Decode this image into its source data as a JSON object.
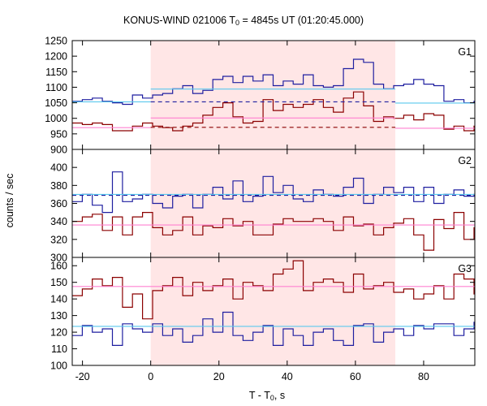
{
  "title": {
    "pre": "KONUS-WIND 021006 T",
    "sub": "0",
    "post": " = 4845s UT (01:20:45.000)"
  },
  "xlabel": {
    "pre": "T - T",
    "sub": "0",
    "post": ", s"
  },
  "ylabel": "counts / sec",
  "colors": {
    "accumulation_shade": "#ffe6e6",
    "blue_series": "#1f1fa0",
    "red_series": "#8b0000",
    "blue_background": "#5ac8ee",
    "red_background": "#ff80d0"
  },
  "chart_data": [
    {
      "type": "line",
      "panel_label": "G1",
      "xlim": [
        -23,
        95
      ],
      "ylim": [
        900,
        1250
      ],
      "x_ticks": [
        -20,
        0,
        20,
        40,
        60,
        80
      ],
      "y_ticks": [
        900,
        950,
        1000,
        1050,
        1100,
        1150,
        1200,
        1250
      ],
      "shaded_interval": [
        0,
        71.7
      ],
      "grid": false,
      "series": [
        {
          "style": "step",
          "color": "blue",
          "x_start": -23,
          "bin_width": 2.944,
          "values": [
            1055,
            1060,
            1065,
            1055,
            1050,
            1045,
            1075,
            1065,
            1075,
            1080,
            1095,
            1105,
            1080,
            1090,
            1125,
            1135,
            1115,
            1135,
            1120,
            1140,
            1105,
            1120,
            1110,
            1140,
            1105,
            1100,
            1105,
            1160,
            1190,
            1180,
            1110,
            1095,
            1105,
            1110,
            1125,
            1110,
            1105,
            1055,
            1060,
            1050,
            1055,
            1060,
            1050,
            1045,
            1075,
            1105,
            1055,
            1045,
            1060,
            1080,
            1045,
            1040,
            1055,
            1040,
            1045,
            1070
          ]
        },
        {
          "style": "step",
          "color": "red",
          "x_start": -23,
          "bin_width": 2.944,
          "values": [
            985,
            980,
            985,
            980,
            960,
            960,
            975,
            985,
            975,
            970,
            960,
            975,
            985,
            1010,
            1035,
            1050,
            1005,
            985,
            990,
            1060,
            1025,
            1045,
            1035,
            1045,
            1060,
            1035,
            1020,
            1065,
            1085,
            1040,
            990,
            1005,
            1000,
            1010,
            995,
            1015,
            1010,
            965,
            975,
            960,
            975,
            1000,
            975,
            965,
            985,
            975,
            965,
            985,
            985,
            975,
            960,
            985,
            970,
            990,
            995,
            960
          ]
        },
        {
          "style": "segments",
          "color": "blue_background",
          "linestyle": "solid",
          "segments": [
            {
              "x": [
                -23,
                0
              ],
              "y": 1053
            },
            {
              "x": [
                0,
                71.7
              ],
              "y": 1094
            },
            {
              "x": [
                71.7,
                95
              ],
              "y": 1049
            }
          ]
        },
        {
          "style": "segments",
          "color": "red_background",
          "linestyle": "solid",
          "segments": [
            {
              "x": [
                -23,
                0
              ],
              "y": 970
            },
            {
              "x": [
                0,
                71.7
              ],
              "y": 1001
            },
            {
              "x": [
                71.7,
                95
              ],
              "y": 968
            }
          ]
        },
        {
          "style": "segments",
          "color": "blue",
          "linestyle": "dashed",
          "segments": [
            {
              "x": [
                0,
                71.7
              ],
              "y": 1053
            }
          ]
        },
        {
          "style": "segments",
          "color": "red",
          "linestyle": "dashed",
          "segments": [
            {
              "x": [
                0,
                71.7
              ],
              "y": 971
            }
          ]
        }
      ]
    },
    {
      "type": "line",
      "panel_label": "G2",
      "xlim": [
        -23,
        95
      ],
      "ylim": [
        300,
        420
      ],
      "x_ticks": [
        -20,
        0,
        20,
        40,
        60,
        80
      ],
      "y_ticks": [
        300,
        320,
        340,
        360,
        380,
        400
      ],
      "shaded_interval": [
        0,
        71.7
      ],
      "grid": false,
      "series": [
        {
          "style": "step",
          "color": "blue",
          "x_start": -23,
          "bin_width": 2.944,
          "values": [
            362,
            370,
            358,
            350,
            395,
            362,
            365,
            370,
            360,
            355,
            368,
            370,
            355,
            370,
            378,
            365,
            385,
            362,
            368,
            390,
            372,
            380,
            365,
            362,
            375,
            370,
            368,
            378,
            388,
            360,
            370,
            378,
            372,
            378,
            362,
            378,
            360,
            370,
            375,
            368,
            370,
            355,
            382,
            360,
            372,
            368,
            370,
            375,
            370,
            362,
            378,
            380,
            370,
            375,
            372,
            360
          ]
        },
        {
          "style": "step",
          "color": "red",
          "x_start": -23,
          "bin_width": 2.944,
          "values": [
            340,
            345,
            348,
            330,
            345,
            325,
            345,
            350,
            333,
            325,
            330,
            345,
            325,
            335,
            333,
            343,
            335,
            340,
            325,
            325,
            337,
            343,
            340,
            340,
            343,
            340,
            330,
            345,
            335,
            337,
            325,
            333,
            338,
            343,
            325,
            308,
            342,
            332,
            350,
            320,
            333,
            335,
            325,
            340,
            333,
            333,
            320,
            332,
            342,
            335,
            345,
            348,
            337,
            345,
            342,
            330
          ]
        },
        {
          "style": "segments",
          "color": "blue_background",
          "linestyle": "solid",
          "segments": [
            {
              "x": [
                -23,
                95
              ],
              "y": 370
            }
          ]
        },
        {
          "style": "segments",
          "color": "red_background",
          "linestyle": "solid",
          "segments": [
            {
              "x": [
                -23,
                95
              ],
              "y": 336
            }
          ]
        },
        {
          "style": "segments",
          "color": "blue",
          "linestyle": "dashed",
          "segments": [
            {
              "x": [
                -23,
                95
              ],
              "y": 369
            }
          ]
        }
      ]
    },
    {
      "type": "line",
      "panel_label": "G3",
      "xlim": [
        -23,
        95
      ],
      "ylim": [
        100,
        165
      ],
      "x_ticks": [
        -20,
        0,
        20,
        40,
        60,
        80
      ],
      "y_ticks": [
        100,
        110,
        120,
        130,
        140,
        150,
        160
      ],
      "shaded_interval": [
        0,
        71.7
      ],
      "grid": false,
      "series": [
        {
          "style": "step",
          "color": "blue",
          "x_start": -23,
          "bin_width": 2.944,
          "values": [
            118,
            124,
            120,
            122,
            112,
            125,
            122,
            120,
            125,
            118,
            122,
            114,
            118,
            128,
            120,
            132,
            118,
            115,
            120,
            124,
            112,
            122,
            118,
            112,
            120,
            122,
            115,
            112,
            124,
            125,
            114,
            120,
            122,
            118,
            124,
            122,
            125,
            125,
            118,
            122,
            126,
            120,
            115,
            124,
            130,
            128,
            126,
            135,
            140,
            128,
            124,
            124,
            122,
            124,
            118,
            124
          ]
        },
        {
          "style": "step",
          "color": "red",
          "x_start": -23,
          "bin_width": 2.944,
          "values": [
            142,
            146,
            152,
            148,
            153,
            135,
            143,
            128,
            145,
            148,
            153,
            142,
            150,
            145,
            148,
            152,
            140,
            150,
            148,
            145,
            155,
            158,
            163,
            145,
            150,
            152,
            150,
            144,
            155,
            146,
            148,
            150,
            144,
            146,
            140,
            143,
            148,
            140,
            155,
            152,
            143,
            145,
            153,
            138,
            140,
            142,
            145,
            140,
            143,
            150,
            155,
            138,
            142,
            150,
            148,
            143
          ]
        },
        {
          "style": "segments",
          "color": "blue_background",
          "linestyle": "solid",
          "segments": [
            {
              "x": [
                -23,
                95
              ],
              "y": 123.5
            }
          ]
        },
        {
          "style": "segments",
          "color": "red_background",
          "linestyle": "solid",
          "segments": [
            {
              "x": [
                -23,
                95
              ],
              "y": 147.5
            }
          ]
        }
      ]
    }
  ]
}
